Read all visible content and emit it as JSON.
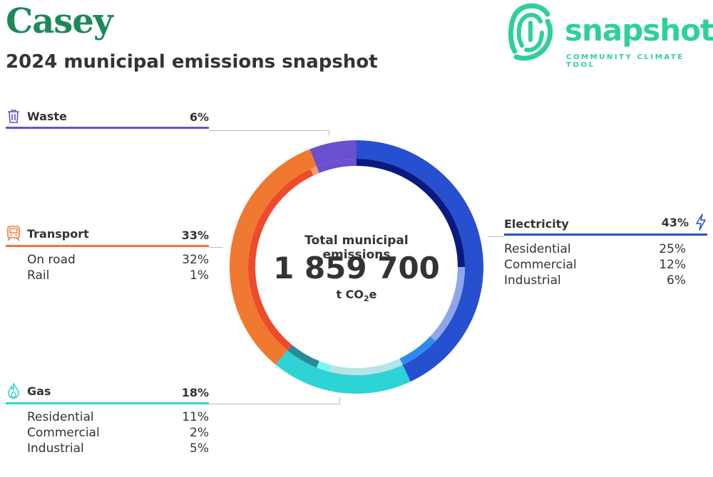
{
  "header": {
    "title": "Casey",
    "subtitle": "2024 municipal emissions snapshot"
  },
  "logo": {
    "word": "snapshot",
    "tagline": "COMMUNITY CLIMATE TOOL"
  },
  "center": {
    "label": "Total municipal emissions",
    "total": "1 859 700",
    "unit_prefix": "t CO",
    "unit_sub": "2",
    "unit_suffix": "e"
  },
  "sectors": {
    "waste": {
      "label": "Waste",
      "pct": "6%",
      "color": "#6a4fcf"
    },
    "transport": {
      "label": "Transport",
      "pct": "33%",
      "color": "#f07830",
      "items": [
        {
          "label": "On road",
          "pct": "32%"
        },
        {
          "label": "Rail",
          "pct": "1%"
        }
      ]
    },
    "gas": {
      "label": "Gas",
      "pct": "18%",
      "color": "#2dd3d5",
      "items": [
        {
          "label": "Residential",
          "pct": "11%"
        },
        {
          "label": "Commercial",
          "pct": "2%"
        },
        {
          "label": "Industrial",
          "pct": "5%"
        }
      ]
    },
    "electricity": {
      "label": "Electricity",
      "pct": "43%",
      "color": "#2750d0",
      "items": [
        {
          "label": "Residential",
          "pct": "25%"
        },
        {
          "label": "Commercial",
          "pct": "12%"
        },
        {
          "label": "Industrial",
          "pct": "6%"
        }
      ]
    }
  },
  "chart_data": {
    "type": "pie",
    "outer": [
      {
        "name": "Electricity",
        "value": 43,
        "color": "#2750d0"
      },
      {
        "name": "Gas",
        "value": 18,
        "color": "#2dd3d5"
      },
      {
        "name": "Transport",
        "value": 33,
        "color": "#f07830"
      },
      {
        "name": "Waste",
        "value": 6,
        "color": "#6a4fcf"
      }
    ],
    "inner": [
      {
        "name": "Electricity Residential",
        "value": 25,
        "color": "#0a1a80"
      },
      {
        "name": "Electricity Commercial",
        "value": 12,
        "color": "#8fa6ea"
      },
      {
        "name": "Electricity Industrial",
        "value": 6,
        "color": "#2c8cee"
      },
      {
        "name": "Gas Residential",
        "value": 11,
        "color": "#b5e5e5"
      },
      {
        "name": "Gas Commercial",
        "value": 2,
        "color": "#7af5f5"
      },
      {
        "name": "Gas Industrial",
        "value": 5,
        "color": "#2a8a96"
      },
      {
        "name": "Transport On road",
        "value": 32,
        "color": "#ee4a2c"
      },
      {
        "name": "Transport Rail",
        "value": 1,
        "color": "#ff9a6a"
      },
      {
        "name": "Waste",
        "value": 6,
        "color": "#6a4fcf"
      }
    ]
  }
}
